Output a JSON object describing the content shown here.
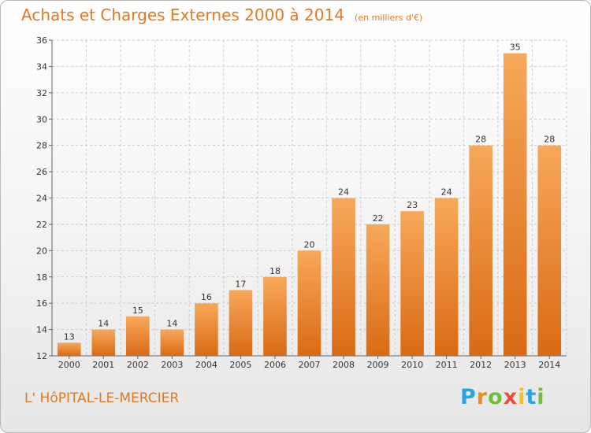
{
  "title": "Achats et Charges Externes 2000 à 2014",
  "subtitle": "(en milliers d'€)",
  "place": "L' HôPITAL-LE-MERCIER",
  "logo_text": "Proxiti",
  "colors": {
    "title": "#e07a22",
    "bar_top": "#f7a85a",
    "bar_bottom": "#d96a14",
    "grid": "#cccccc"
  },
  "chart_data": {
    "type": "bar",
    "title": "Achats et Charges Externes 2000 à 2014",
    "subtitle": "(en milliers d'€)",
    "categories": [
      "2000",
      "2001",
      "2002",
      "2003",
      "2004",
      "2005",
      "2006",
      "2007",
      "2008",
      "2009",
      "2010",
      "2011",
      "2012",
      "2013",
      "2014"
    ],
    "values": [
      13,
      14,
      15,
      14,
      16,
      17,
      18,
      20,
      24,
      22,
      23,
      24,
      28,
      35,
      28
    ],
    "ylim": [
      12,
      36
    ],
    "yticks": [
      12,
      14,
      16,
      18,
      20,
      22,
      24,
      26,
      28,
      30,
      32,
      34,
      36
    ],
    "grid": true,
    "xlabel": "",
    "ylabel": ""
  }
}
